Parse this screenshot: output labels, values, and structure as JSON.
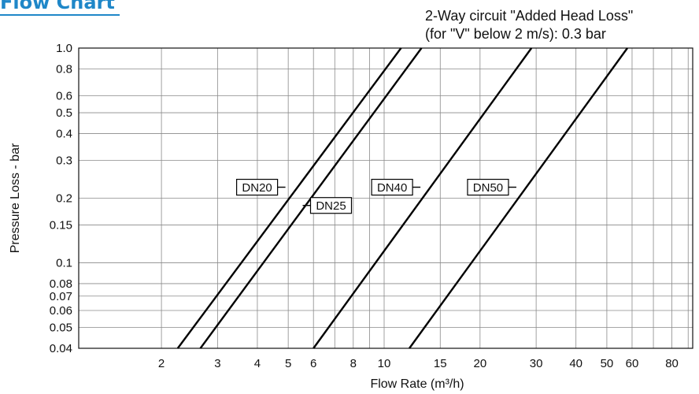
{
  "header": {
    "title": "Flow Chart",
    "note_line1": "2-Way circuit \"Added Head Loss\"",
    "note_line2": "(for \"V\" below 2 m/s): 0.3 bar"
  },
  "chart_data": {
    "type": "line",
    "title": "",
    "xlabel": "Flow Rate (m³/h)",
    "ylabel": "Pressure Loss - bar",
    "x_scale": "log",
    "y_scale": "log",
    "xlim": [
      1.1,
      93
    ],
    "ylim": [
      0.04,
      1.0
    ],
    "grid": true,
    "x_ticks": [
      {
        "value": 2,
        "label": "2"
      },
      {
        "value": 3,
        "label": "3"
      },
      {
        "value": 4,
        "label": "4"
      },
      {
        "value": 5,
        "label": "5"
      },
      {
        "value": 6,
        "label": "6"
      },
      {
        "value": 8,
        "label": "8"
      },
      {
        "value": 10,
        "label": "10"
      },
      {
        "value": 15,
        "label": "15"
      },
      {
        "value": 20,
        "label": "20"
      },
      {
        "value": 30,
        "label": "30"
      },
      {
        "value": 40,
        "label": "40"
      },
      {
        "value": 50,
        "label": "50"
      },
      {
        "value": 60,
        "label": "60"
      },
      {
        "value": 80,
        "label": "80"
      }
    ],
    "y_ticks": [
      {
        "value": 0.04,
        "label": "0.04"
      },
      {
        "value": 0.05,
        "label": "0.05"
      },
      {
        "value": 0.06,
        "label": "0.06"
      },
      {
        "value": 0.07,
        "label": "0.07"
      },
      {
        "value": 0.08,
        "label": "0.08"
      },
      {
        "value": 0.1,
        "label": "0.1"
      },
      {
        "value": 0.15,
        "label": "0.15"
      },
      {
        "value": 0.2,
        "label": "0.2"
      },
      {
        "value": 0.3,
        "label": "0.3"
      },
      {
        "value": 0.4,
        "label": "0.4"
      },
      {
        "value": 0.5,
        "label": "0.5"
      },
      {
        "value": 0.6,
        "label": "0.6"
      },
      {
        "value": 0.8,
        "label": "0.8"
      },
      {
        "value": 1.0,
        "label": "1.0"
      }
    ],
    "x_grid": [
      2,
      3,
      4,
      5,
      6,
      7,
      8,
      9,
      10,
      15,
      20,
      30,
      40,
      50,
      60,
      70,
      80,
      90
    ],
    "y_grid": [
      0.04,
      0.05,
      0.06,
      0.07,
      0.08,
      0.1,
      0.15,
      0.2,
      0.3,
      0.4,
      0.5,
      0.6,
      0.8,
      1.0
    ],
    "series": [
      {
        "name": "DN20",
        "label_at": {
          "x": 4.9,
          "y": 0.225
        },
        "label_side": "left",
        "points": [
          {
            "x": 2.25,
            "y": 0.04
          },
          {
            "x": 11.3,
            "y": 1.0
          }
        ]
      },
      {
        "name": "DN25",
        "label_at": {
          "x": 5.55,
          "y": 0.185
        },
        "label_side": "right",
        "points": [
          {
            "x": 2.65,
            "y": 0.04
          },
          {
            "x": 13.1,
            "y": 1.0
          }
        ]
      },
      {
        "name": "DN40",
        "label_at": {
          "x": 13.0,
          "y": 0.225
        },
        "label_side": "left",
        "points": [
          {
            "x": 6.0,
            "y": 0.04
          },
          {
            "x": 29.0,
            "y": 1.0
          }
        ]
      },
      {
        "name": "DN50",
        "label_at": {
          "x": 26.0,
          "y": 0.225
        },
        "label_side": "left",
        "points": [
          {
            "x": 12.0,
            "y": 0.04
          },
          {
            "x": 58.0,
            "y": 1.0
          }
        ]
      }
    ]
  }
}
